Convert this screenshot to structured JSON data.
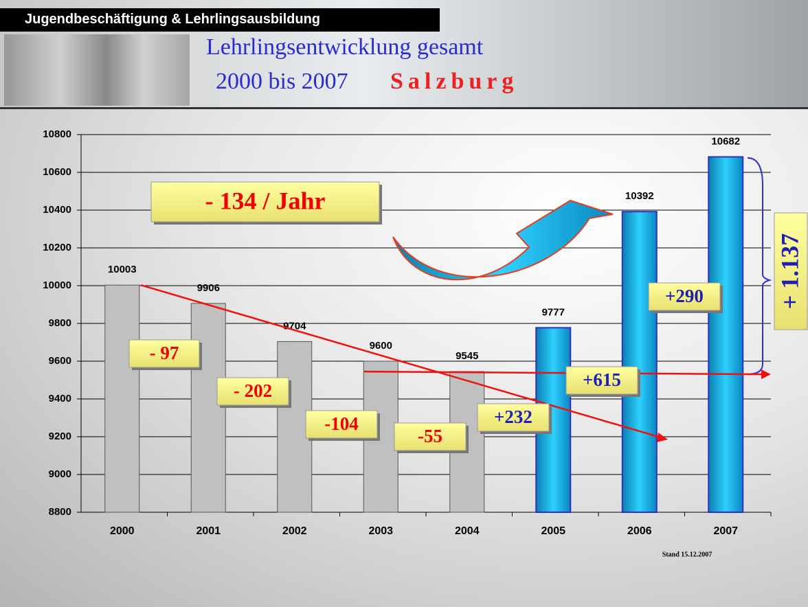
{
  "header": {
    "banner": "Jugendbeschäftigung & Lehrlingsausbildung",
    "title": "Lehrlingsentwicklung gesamt",
    "subtitle": "2000 bis 2007",
    "region": "Salzburg"
  },
  "chart_data": {
    "type": "bar",
    "categories": [
      "2000",
      "2001",
      "2002",
      "2003",
      "2004",
      "2005",
      "2006",
      "2007"
    ],
    "values": [
      10003,
      9906,
      9704,
      9600,
      9545,
      9777,
      10392,
      10682
    ],
    "colors": [
      "#c0c0c0",
      "#c0c0c0",
      "#c0c0c0",
      "#c0c0c0",
      "#c0c0c0",
      "#14b4e6",
      "#14b4e6",
      "#14b4e6"
    ],
    "ylim": [
      8800,
      10800
    ],
    "yticks": [
      8800,
      9000,
      9200,
      9400,
      9600,
      9800,
      10000,
      10200,
      10400,
      10600,
      10800
    ],
    "grid": true,
    "annotations": [
      "- 134 / Jahr",
      "- 97",
      "- 202",
      "-104",
      "-55",
      "+232",
      "+615",
      "+290",
      "+ 1.137",
      "Stand 15.12.2007"
    ]
  }
}
